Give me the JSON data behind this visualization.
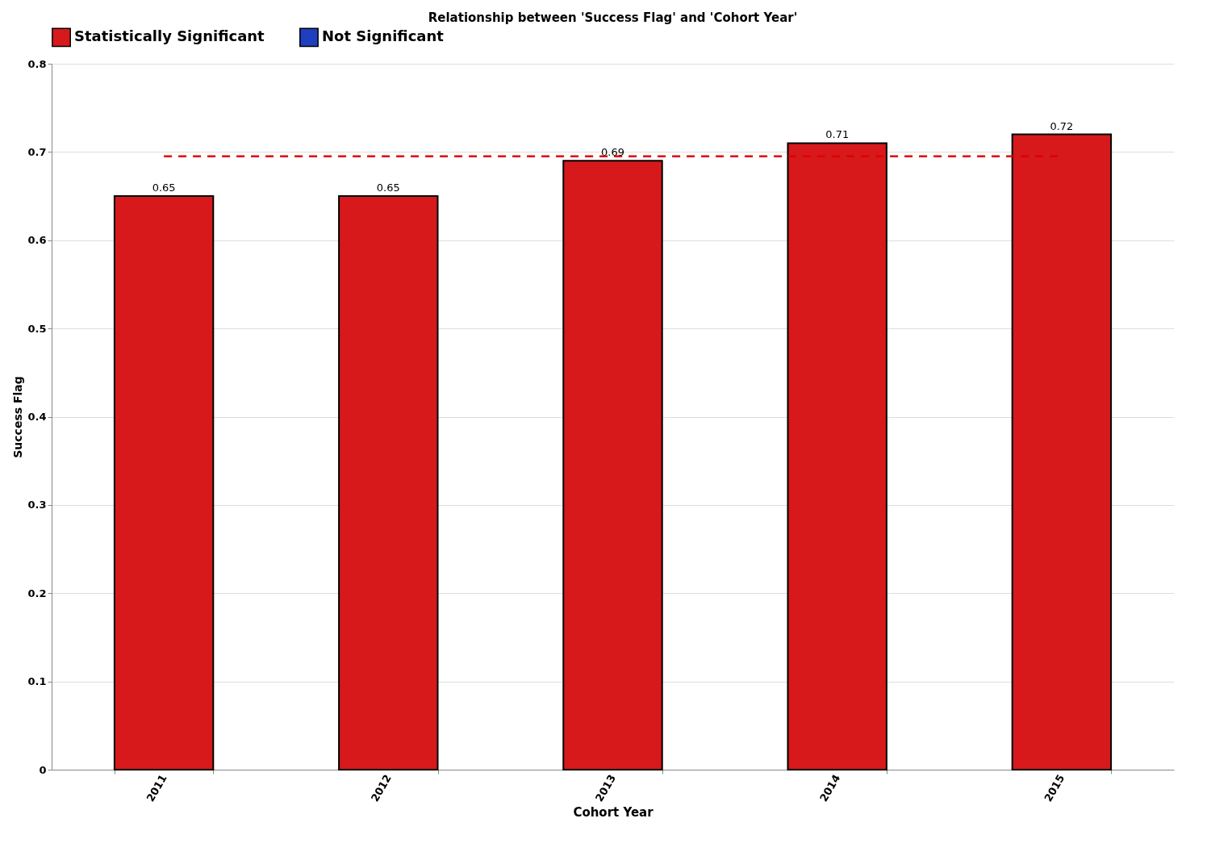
{
  "chart_data": {
    "type": "bar",
    "title": "Relationship between 'Success Flag' and 'Cohort Year'",
    "xlabel": "Cohort Year",
    "ylabel": "Success Flag",
    "categories": [
      "2011",
      "2012",
      "2013",
      "2014",
      "2015"
    ],
    "series": [
      {
        "name": "Statistically Significant",
        "color": "#d7191c",
        "values": [
          0.65,
          0.65,
          0.69,
          0.71,
          0.72
        ]
      },
      {
        "name": "Not Significant",
        "color": "#1f3fbf",
        "values": [
          null,
          null,
          null,
          null,
          null
        ]
      }
    ],
    "ylim": [
      0,
      0.8
    ],
    "yticks": [
      0,
      0.1,
      0.2,
      0.3,
      0.4,
      0.5,
      0.6,
      0.7,
      0.8
    ],
    "ref_lines": [
      {
        "axis": "y",
        "value": 0.695,
        "color": "#e00000",
        "line_style": "dashed"
      }
    ],
    "data_labels": true,
    "grid": "y",
    "legend": "top"
  }
}
